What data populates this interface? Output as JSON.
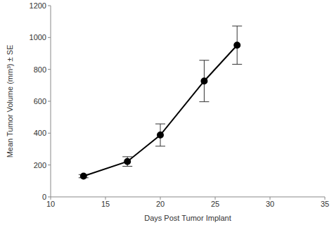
{
  "chart_data": {
    "type": "line",
    "x_label": "Days Post Tumor Implant",
    "y_label": "Mean Tumor Volume (mm³) ± SE",
    "x": [
      13,
      17,
      20,
      24,
      27
    ],
    "values": [
      130,
      222,
      388,
      727,
      952
    ],
    "errors": [
      10,
      30,
      70,
      130,
      120
    ],
    "color": "#000000",
    "marker": "circle",
    "line_style": "solid",
    "xlim": [
      10,
      35
    ],
    "xticks": [
      10,
      15,
      20,
      25,
      30,
      35
    ],
    "ylim": [
      0,
      1200
    ],
    "yticks": [
      0,
      200,
      400,
      600,
      800,
      1000,
      1200
    ],
    "grid": false
  }
}
